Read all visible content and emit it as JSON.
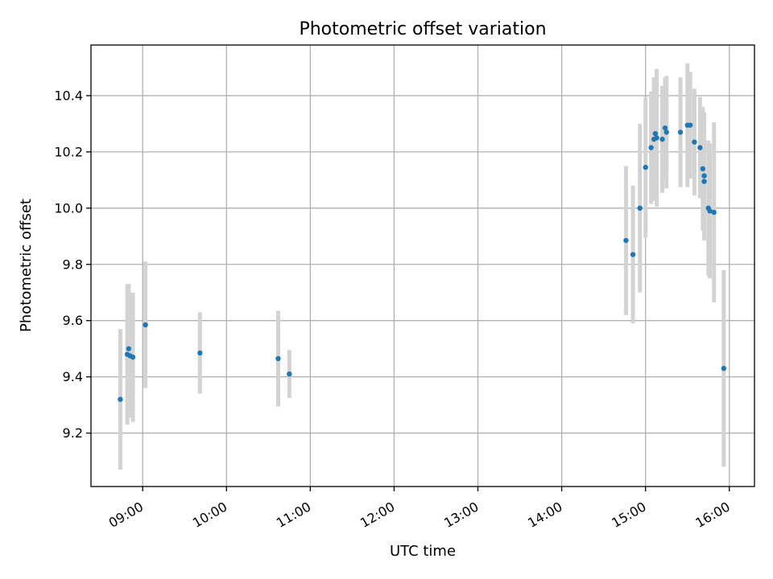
{
  "chart_data": {
    "type": "scatter",
    "title": "Photometric offset variation",
    "xlabel": "UTC time",
    "ylabel": "Photometric offset",
    "xlim": [
      "08:23",
      "16:18"
    ],
    "ylim": [
      9.01,
      10.58
    ],
    "grid": true,
    "x_ticks": [
      "09:00",
      "10:00",
      "11:00",
      "12:00",
      "13:00",
      "14:00",
      "15:00",
      "16:00"
    ],
    "y_ticks": [
      9.2,
      9.4,
      9.6,
      9.8,
      10.0,
      10.2,
      10.4
    ],
    "y_tick_labels": [
      "9.2",
      "9.4",
      "9.6",
      "9.8",
      "10.0",
      "10.2",
      "10.4"
    ],
    "colors": {
      "points": "#1f77b4",
      "error_bars": "#d3d3d3"
    },
    "series": [
      {
        "points": [
          {
            "x": "08:44",
            "y": 9.32,
            "err": 0.25
          },
          {
            "x": "08:49",
            "y": 9.48,
            "err": 0.25
          },
          {
            "x": "08:50",
            "y": 9.5,
            "err": 0.23
          },
          {
            "x": "08:51",
            "y": 9.475,
            "err": 0.22
          },
          {
            "x": "08:53",
            "y": 9.47,
            "err": 0.23
          },
          {
            "x": "09:02",
            "y": 9.585,
            "err": 0.225
          },
          {
            "x": "09:41",
            "y": 9.485,
            "err": 0.145
          },
          {
            "x": "10:37",
            "y": 9.465,
            "err": 0.17
          },
          {
            "x": "10:45",
            "y": 9.41,
            "err": 0.085
          },
          {
            "x": "14:46",
            "y": 9.885,
            "err": 0.265
          },
          {
            "x": "14:51",
            "y": 9.835,
            "err": 0.245
          },
          {
            "x": "14:56",
            "y": 10.0,
            "err": 0.3
          },
          {
            "x": "15:00",
            "y": 10.145,
            "err": 0.25
          },
          {
            "x": "15:04",
            "y": 10.215,
            "err": 0.2
          },
          {
            "x": "15:06",
            "y": 10.245,
            "err": 0.22
          },
          {
            "x": "15:07",
            "y": 10.265,
            "err": 0.2
          },
          {
            "x": "15:08",
            "y": 10.25,
            "err": 0.245
          },
          {
            "x": "15:12",
            "y": 10.245,
            "err": 0.19
          },
          {
            "x": "15:14",
            "y": 10.285,
            "err": 0.18
          },
          {
            "x": "15:15",
            "y": 10.27,
            "err": 0.2
          },
          {
            "x": "15:25",
            "y": 10.27,
            "err": 0.195
          },
          {
            "x": "15:30",
            "y": 10.295,
            "err": 0.22
          },
          {
            "x": "15:32",
            "y": 10.295,
            "err": 0.19
          },
          {
            "x": "15:35",
            "y": 10.235,
            "err": 0.19
          },
          {
            "x": "15:39",
            "y": 10.215,
            "err": 0.18
          },
          {
            "x": "15:41",
            "y": 10.14,
            "err": 0.22
          },
          {
            "x": "15:42",
            "y": 10.115,
            "err": 0.225
          },
          {
            "x": "15:42",
            "y": 10.095,
            "err": 0.21
          },
          {
            "x": "15:45",
            "y": 10.0,
            "err": 0.24
          },
          {
            "x": "15:46",
            "y": 9.99,
            "err": 0.24
          },
          {
            "x": "15:49",
            "y": 9.985,
            "err": 0.32
          },
          {
            "x": "15:56",
            "y": 9.43,
            "err": 0.35
          }
        ]
      }
    ]
  }
}
